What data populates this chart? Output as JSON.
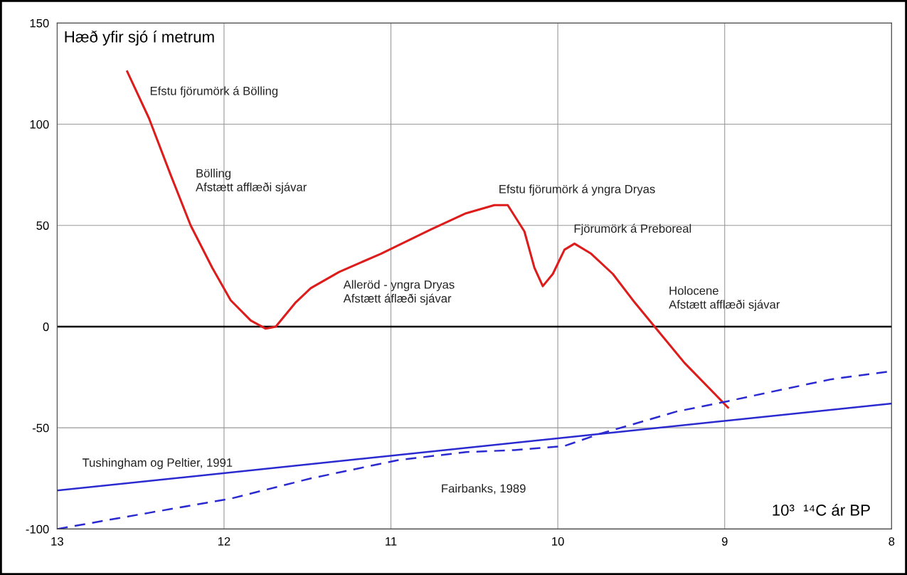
{
  "chart_data": {
    "type": "line",
    "xlabel": "10³  ¹⁴C ár BP",
    "ylabel": "Hæð yfir sjó í metrum",
    "xlim": [
      13,
      8
    ],
    "xticks": [
      13,
      12,
      11,
      10,
      9,
      8
    ],
    "ylim": [
      -100,
      150
    ],
    "yticks": [
      -100,
      -50,
      0,
      50,
      100,
      150
    ],
    "grid": true,
    "line_style": "solid",
    "series": [
      {
        "color": "#dd1c1c",
        "x": [
          12.58,
          12.45,
          12.32,
          12.2,
          12.07,
          11.96,
          11.84,
          11.75,
          11.69,
          11.57,
          11.48,
          11.31,
          11.06,
          10.76,
          10.55,
          10.38,
          10.3,
          10.2,
          10.14,
          10.09,
          10.03,
          9.96,
          9.9,
          9.8,
          9.67,
          9.54,
          9.42,
          9.24,
          8.98
        ],
        "values": [
          126,
          103,
          75,
          50,
          29,
          13,
          3,
          -1,
          0,
          12,
          19,
          27,
          36,
          48,
          56,
          60,
          60,
          47,
          29,
          20,
          26,
          38,
          41,
          36,
          26,
          12,
          0,
          -18,
          -40
        ]
      },
      {
        "name": "Tushingham og Peltier, 1991",
        "color": "#2a2ad0",
        "x": [
          13,
          8
        ],
        "values": [
          -81,
          -38
        ]
      },
      {
        "name": "Fairbanks, 1989",
        "color": "#2a2ad0",
        "line_style": "dashed",
        "x": [
          13,
          12.45,
          11.96,
          11.48,
          10.96,
          10.55,
          10.26,
          9.96,
          9.75,
          9.58,
          9.29,
          8.99,
          8.65,
          8.36,
          8
        ],
        "values": [
          -100,
          -92,
          -85,
          -75,
          -66,
          -62,
          -61,
          -59,
          -53,
          -49,
          -42,
          -37,
          -31,
          -26,
          -22
        ]
      }
    ],
    "ref_lines": [
      {
        "axis": "y",
        "value": 0,
        "color": "#000000"
      }
    ],
    "annotations": [
      "Efstu fjörumörk á Bölling",
      "Bölling\nAfstætt afflæði sjávar",
      "Efstu fjörumörk á yngra Dryas",
      "Fjörumörk á Preboreal",
      "Alleröd - yngra Dryas\nAfstætt áflæði sjávar",
      "Holocene\nAfstætt afflæði sjávar"
    ]
  }
}
